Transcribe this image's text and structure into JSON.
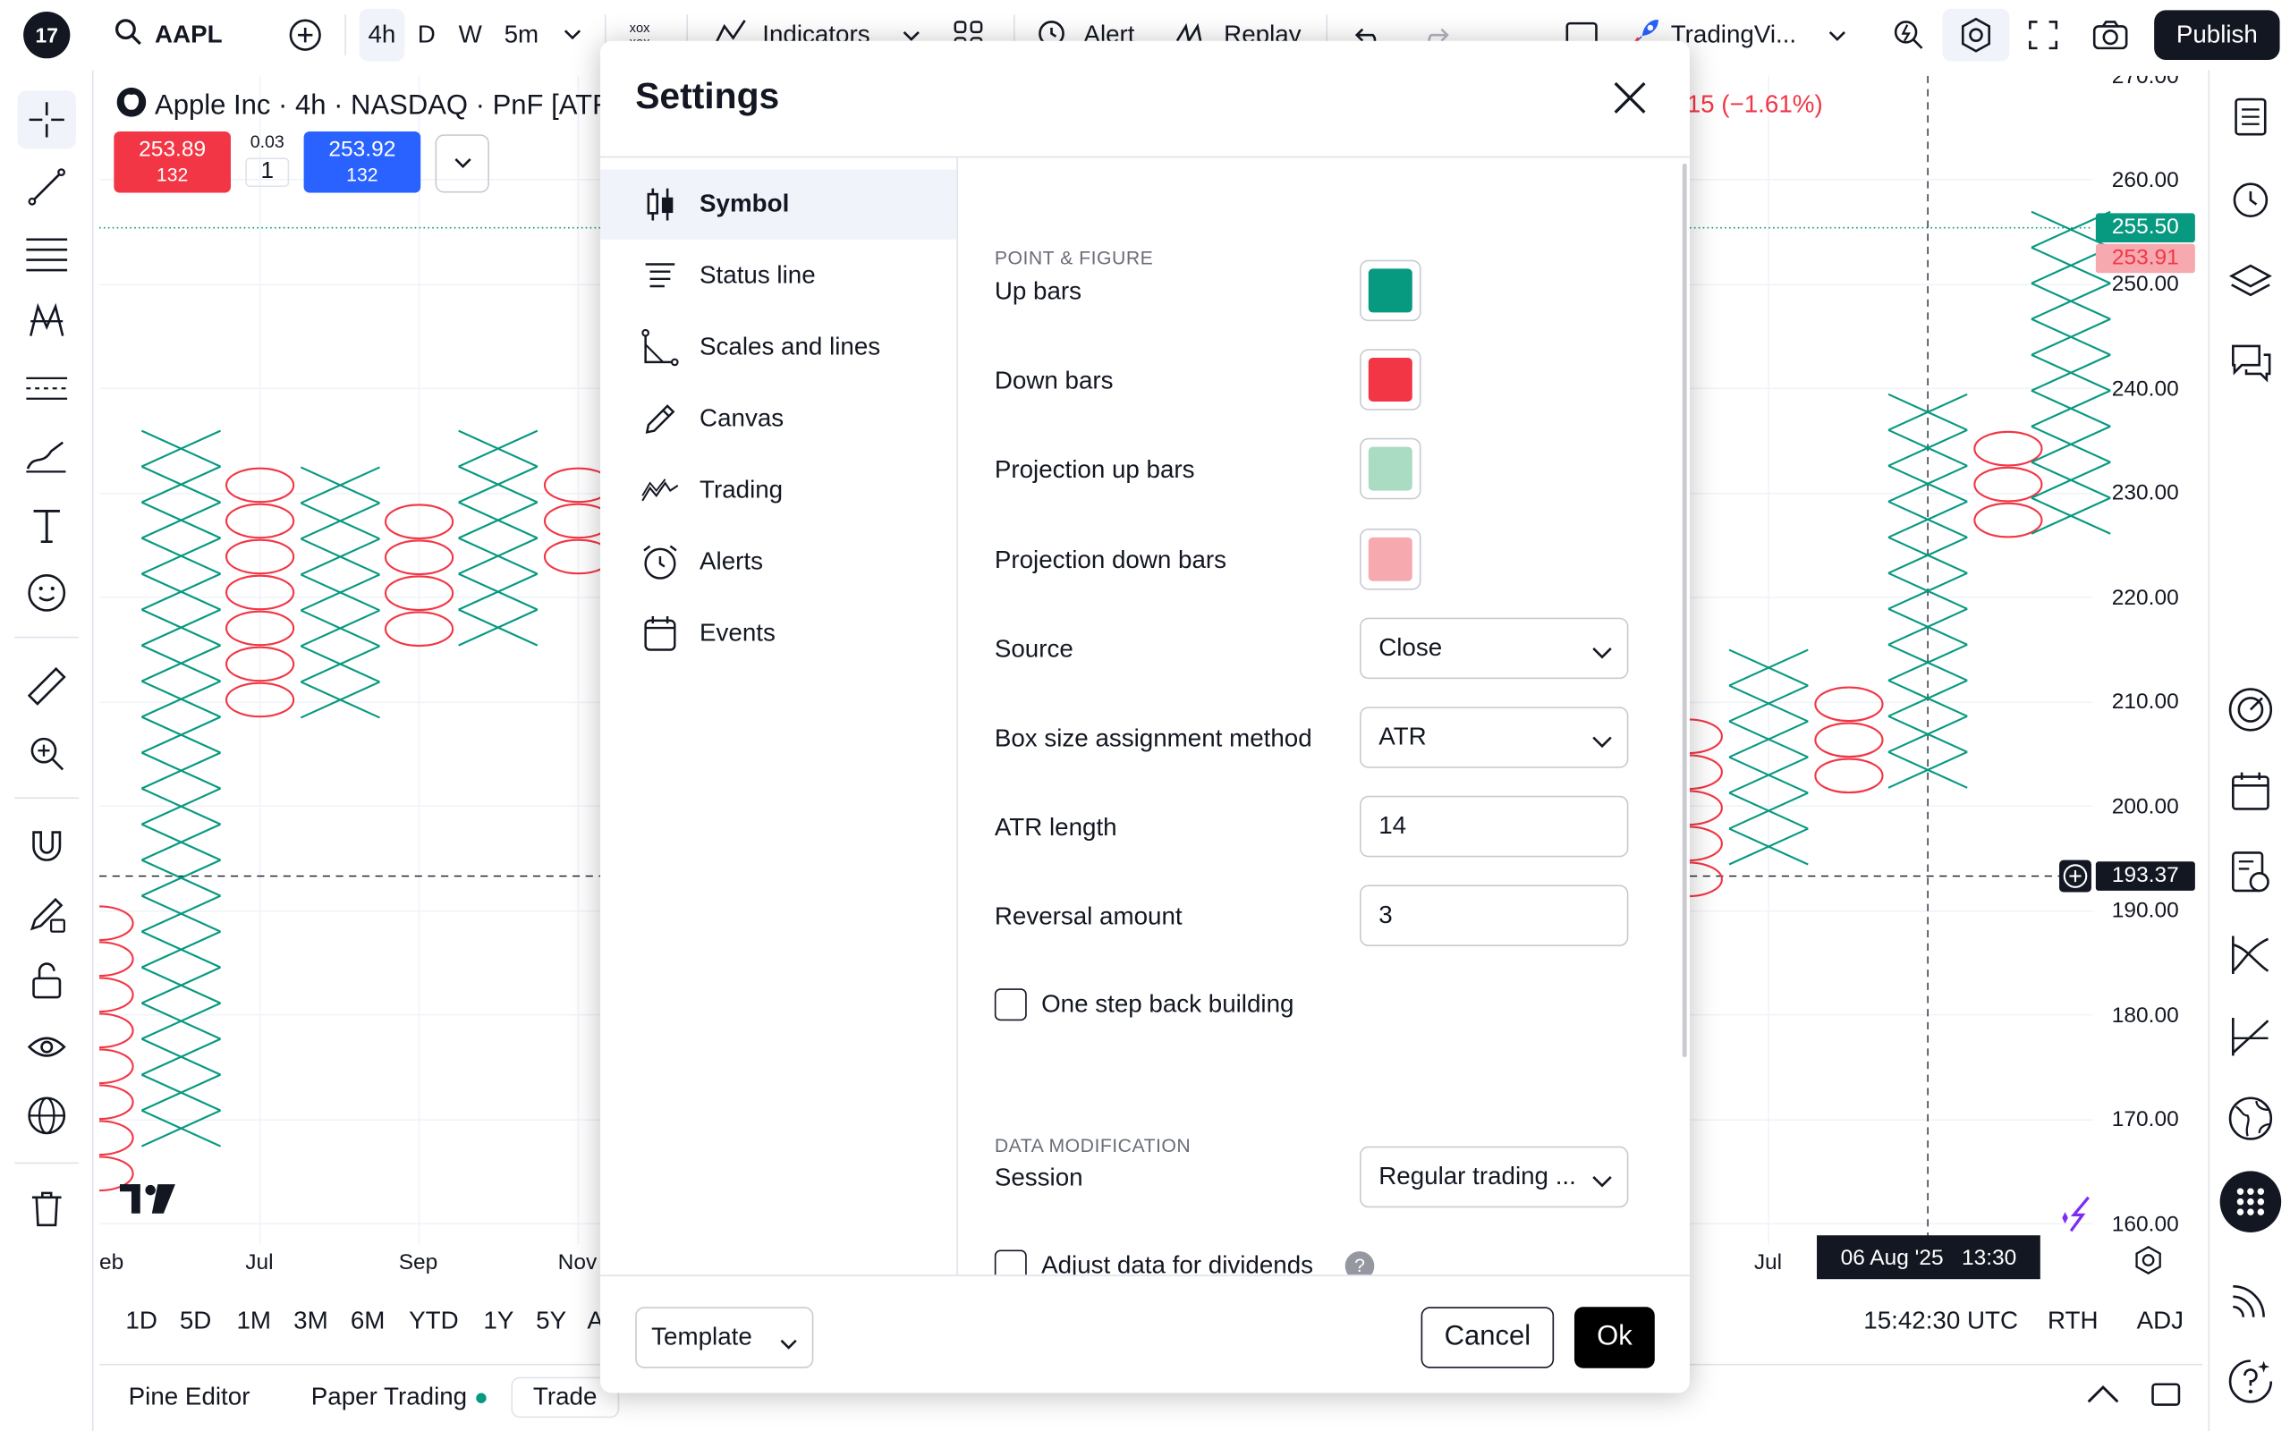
{
  "topbar": {
    "symbol": "AAPL",
    "intervals": [
      "4h",
      "D",
      "W",
      "5m"
    ],
    "indicators_label": "Indicators",
    "alert_label": "Alert",
    "replay_label": "Replay",
    "layout_name": "TradingVi...",
    "publish_label": "Publish"
  },
  "legend": {
    "title": "Apple Inc · 4h · NASDAQ · PnF [ATR",
    "change": "15 (−1.61%)",
    "bid_price": "253.89",
    "bid_size": "132",
    "spread": "0.03",
    "spread_qty": "1",
    "ask_price": "253.92",
    "ask_size": "132"
  },
  "price_axis": {
    "labels": [
      "270.00",
      "260.00",
      "250.00",
      "240.00",
      "230.00",
      "220.00",
      "210.00",
      "200.00",
      "190.00",
      "180.00",
      "170.00",
      "160.00"
    ],
    "tag_last": "255.50",
    "tag_prev": "253.91",
    "tag_cross": "193.37"
  },
  "time_axis": {
    "labels": [
      "eb",
      "Jul",
      "Sep",
      "Nov",
      "Jul"
    ],
    "cursor_label": "06 Aug '25   13:30"
  },
  "range_bar": {
    "ranges": [
      "1D",
      "5D",
      "1M",
      "3M",
      "6M",
      "YTD",
      "1Y",
      "5Y",
      "A"
    ],
    "clock": "15:42:30 UTC",
    "session": "RTH",
    "adj": "ADJ"
  },
  "bottom_tabs": {
    "pine": "Pine Editor",
    "paper": "Paper Trading",
    "trade": "Trade"
  },
  "modal": {
    "title": "Settings",
    "nav": [
      {
        "label": "Symbol",
        "icon": "candles-icon"
      },
      {
        "label": "Status line",
        "icon": "status-line-icon"
      },
      {
        "label": "Scales and lines",
        "icon": "scales-icon"
      },
      {
        "label": "Canvas",
        "icon": "pencil-icon"
      },
      {
        "label": "Trading",
        "icon": "trading-icon"
      },
      {
        "label": "Alerts",
        "icon": "alarm-clock-icon"
      },
      {
        "label": "Events",
        "icon": "calendar-icon"
      }
    ],
    "section_pnf": "POINT & FIGURE",
    "up_bars": "Up bars",
    "down_bars": "Down bars",
    "proj_up": "Projection up bars",
    "proj_down": "Projection down bars",
    "source_label": "Source",
    "source_value": "Close",
    "box_method_label": "Box size assignment method",
    "box_method_value": "ATR",
    "atr_label": "ATR length",
    "atr_value": "14",
    "reversal_label": "Reversal amount",
    "reversal_value": "3",
    "one_step_label": "One step back building",
    "section_data": "DATA MODIFICATION",
    "session_label": "Session",
    "session_value": "Regular trading ...",
    "adjust_label": "Adjust data for dividends",
    "template_label": "Template",
    "cancel_label": "Cancel",
    "ok_label": "Ok"
  },
  "colors": {
    "up": "#089981",
    "down": "#f23645",
    "proj_up": "#a9dcc3",
    "proj_down": "#f7a9b0",
    "bid": "#f23645",
    "ask": "#2962ff"
  }
}
